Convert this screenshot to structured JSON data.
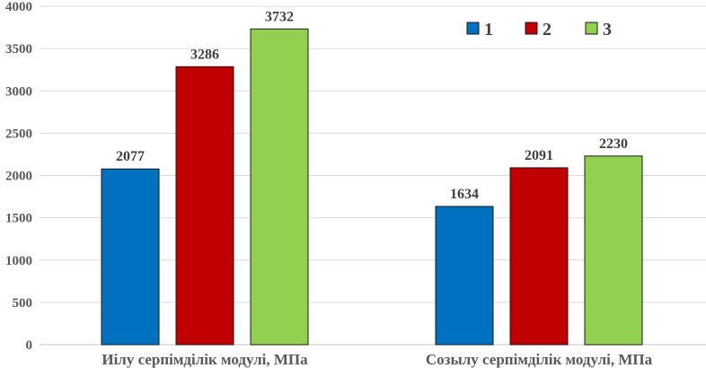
{
  "chart_data": {
    "type": "bar",
    "categories": [
      "Иілу серпімділік модулі, МПа",
      "Созылу серпімділік модулі, МПа"
    ],
    "series": [
      {
        "name": "1",
        "values": [
          2077,
          1634
        ],
        "color": "#0070C0"
      },
      {
        "name": "2",
        "values": [
          3286,
          2091
        ],
        "color": "#C00000"
      },
      {
        "name": "3",
        "values": [
          3732,
          2230
        ],
        "color": "#92D050"
      }
    ],
    "title": "",
    "xlabel": "",
    "ylabel": "",
    "ylim": [
      0,
      4000
    ],
    "yticks": [
      0,
      500,
      1000,
      1500,
      2000,
      2500,
      3000,
      3500,
      4000
    ],
    "grid": true,
    "legend_position": "top-right",
    "data_labels": true
  }
}
